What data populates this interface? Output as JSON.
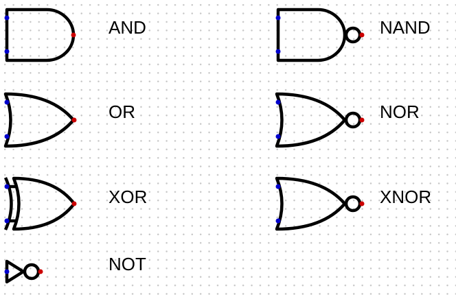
{
  "gates": {
    "and": {
      "label": "AND"
    },
    "nand": {
      "label": "NAND"
    },
    "or": {
      "label": "OR"
    },
    "nor": {
      "label": "NOR"
    },
    "xor": {
      "label": "XOR"
    },
    "xnor": {
      "label": "XNOR"
    },
    "not": {
      "label": "NOT"
    }
  },
  "colors": {
    "stroke": "#000000",
    "input_pin": "#0000cc",
    "output_pin": "#cc0000",
    "grid_dot": "#c8c8c8"
  }
}
